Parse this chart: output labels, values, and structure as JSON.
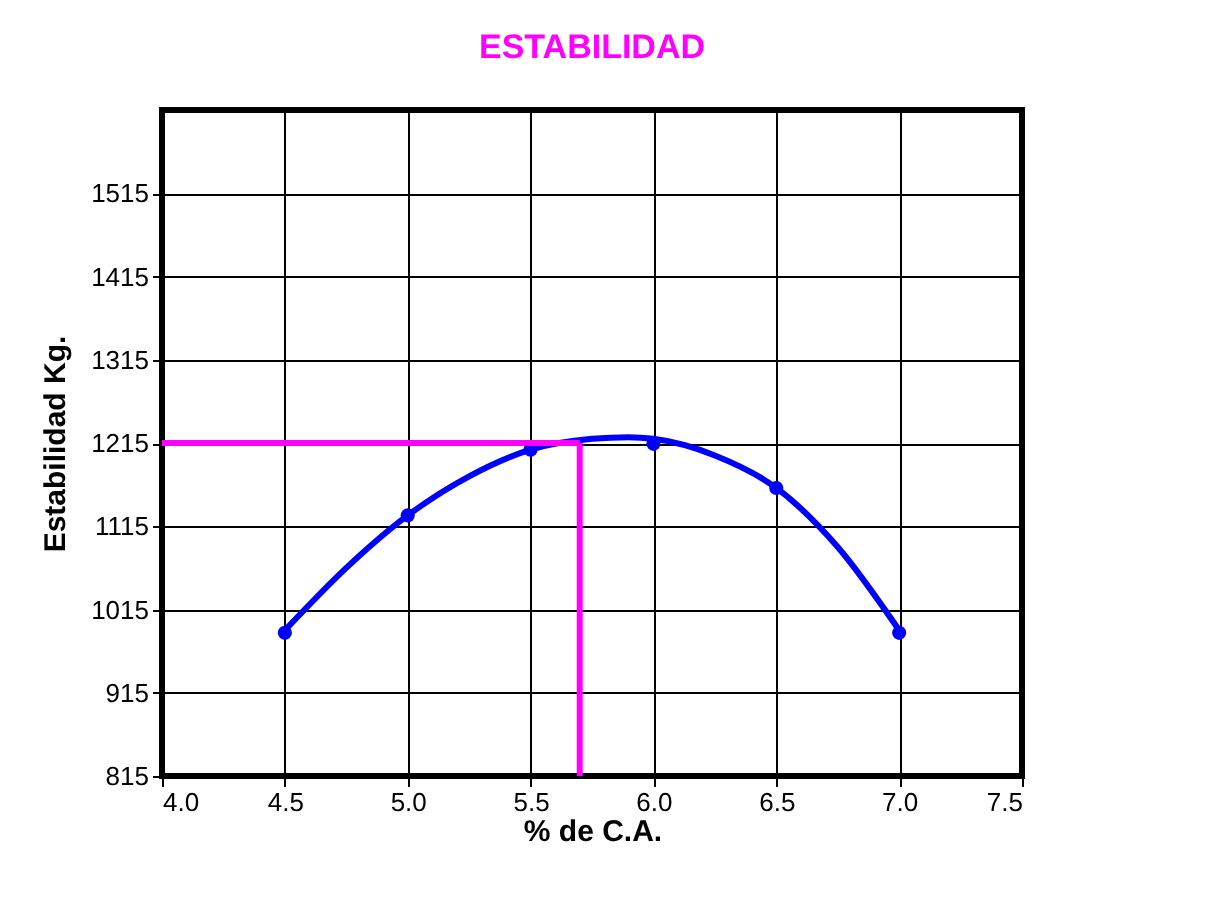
{
  "chart_data": {
    "type": "scatter",
    "title": "ESTABILIDAD",
    "xlabel": "% de C.A.",
    "ylabel": "Estabilidad  Kg.",
    "x": [
      4.5,
      5.0,
      5.5,
      6.0,
      6.5,
      7.0
    ],
    "series": [
      {
        "color": "#0000ff",
        "marker": "circle",
        "values": [
          987,
          1128,
          1207,
          1214,
          1161,
          987
        ]
      },
      {
        "type": "line",
        "color": "#0000ff",
        "line_style": "solid",
        "marker": "none",
        "x": [
          4.5,
          4.75,
          5.0,
          5.25,
          5.5,
          5.75,
          5.9,
          6.0,
          6.25,
          6.5,
          6.75,
          7.0
        ],
        "values": [
          990,
          1065,
          1128,
          1175,
          1207,
          1220,
          1222,
          1220,
          1200,
          1161,
          1090,
          990
        ]
      }
    ],
    "xlim": [
      4.0,
      7.5
    ],
    "xticks": [
      {
        "value": 4.0,
        "label": "4.0"
      },
      {
        "value": 4.5,
        "label": "4.5"
      },
      {
        "value": 5.0,
        "label": "5.0"
      },
      {
        "value": 5.5,
        "label": "5.5"
      },
      {
        "value": 6.0,
        "label": "6.0"
      },
      {
        "value": 6.5,
        "label": "6.5"
      },
      {
        "value": 7.0,
        "label": "7.0"
      },
      {
        "value": 7.5,
        "label": "7.5"
      }
    ],
    "ylim": [
      815,
      1615
    ],
    "yticks": [
      815,
      915,
      1015,
      1115,
      1215,
      1315,
      1415,
      1515
    ],
    "ref_lines": [
      {
        "axis": "y",
        "value": 1215,
        "color": "#ff00ff"
      },
      {
        "axis": "x",
        "value": 5.7,
        "color": "#ff00ff"
      }
    ],
    "grid": true
  }
}
